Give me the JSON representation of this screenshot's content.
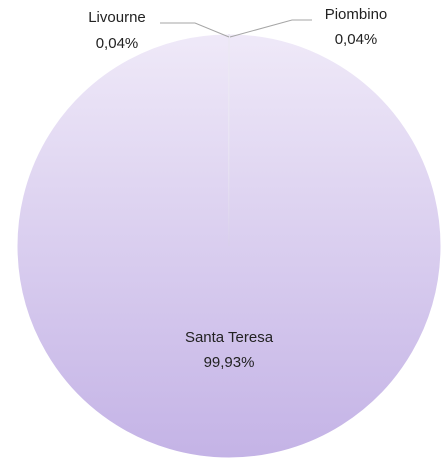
{
  "chart_data": {
    "type": "pie",
    "slices": [
      {
        "label": "Santa Teresa",
        "value": 99.93,
        "value_label": "99,93%"
      },
      {
        "label": "Piombino",
        "value": 0.04,
        "value_label": "0,04%"
      },
      {
        "label": "Livourne",
        "value": 0.04,
        "value_label": "0,04%"
      }
    ],
    "fill_gradient": {
      "top": "#efe9f8",
      "bottom": "#c4b3e6"
    },
    "stroke_color": "#ffffff",
    "leader_line_color": "#a6a6a6",
    "legend": "none"
  }
}
